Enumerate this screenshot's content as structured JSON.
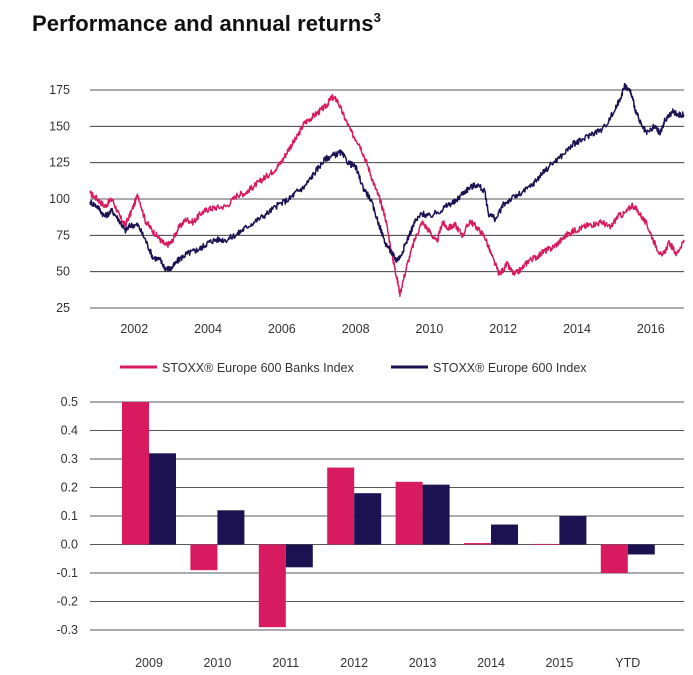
{
  "page": {
    "title": "Performance and annual returns",
    "title_footnote": "3"
  },
  "colors": {
    "banks": "#d81b60",
    "index": "#1c1252",
    "grid": "#222222"
  },
  "chart_data": [
    {
      "type": "line",
      "title": "",
      "xlabel": "",
      "ylabel": "",
      "xlim": [
        2000.8,
        2016.9
      ],
      "ylim": [
        25,
        175
      ],
      "x_ticks": [
        "2002",
        "2004",
        "2006",
        "2008",
        "2010",
        "2012",
        "2014",
        "2016"
      ],
      "y_ticks": [
        "175",
        "150",
        "125",
        "100",
        "75",
        "50",
        "25"
      ],
      "grid": "horizontal",
      "legend_placement": "bottom",
      "series": [
        {
          "name": "STOXX® Europe 600 Banks Index",
          "color": "#d81b60",
          "x": [
            2000.8,
            2001.0,
            2001.2,
            2001.4,
            2001.6,
            2001.75,
            2001.9,
            2002.1,
            2002.3,
            2002.5,
            2002.7,
            2002.85,
            2003.0,
            2003.2,
            2003.4,
            2003.6,
            2003.8,
            2004.0,
            2004.2,
            2004.5,
            2004.8,
            2005.0,
            2005.2,
            2005.4,
            2005.6,
            2005.8,
            2006.0,
            2006.2,
            2006.4,
            2006.6,
            2006.8,
            2007.0,
            2007.2,
            2007.35,
            2007.5,
            2007.7,
            2007.9,
            2008.1,
            2008.3,
            2008.5,
            2008.65,
            2008.8,
            2009.0,
            2009.1,
            2009.2,
            2009.4,
            2009.6,
            2009.8,
            2010.0,
            2010.2,
            2010.35,
            2010.5,
            2010.7,
            2010.9,
            2011.1,
            2011.3,
            2011.5,
            2011.7,
            2011.9,
            2012.1,
            2012.3,
            2012.5,
            2012.7,
            2012.9,
            2013.1,
            2013.3,
            2013.5,
            2013.7,
            2013.9,
            2014.1,
            2014.3,
            2014.5,
            2014.7,
            2014.9,
            2015.1,
            2015.3,
            2015.5,
            2015.7,
            2015.9,
            2016.1,
            2016.3,
            2016.5,
            2016.7,
            2016.9
          ],
          "y": [
            104,
            100,
            95,
            100,
            88,
            82,
            90,
            103,
            85,
            78,
            72,
            68,
            70,
            80,
            86,
            84,
            90,
            93,
            94,
            95,
            103,
            104,
            108,
            112,
            116,
            120,
            126,
            135,
            142,
            152,
            156,
            160,
            164,
            170,
            168,
            156,
            145,
            138,
            125,
            110,
            100,
            88,
            60,
            48,
            35,
            55,
            72,
            84,
            78,
            70,
            84,
            80,
            82,
            75,
            85,
            80,
            74,
            60,
            48,
            55,
            48,
            52,
            58,
            60,
            64,
            66,
            70,
            75,
            78,
            80,
            82,
            83,
            84,
            80,
            88,
            90,
            96,
            90,
            82,
            70,
            60,
            70,
            62,
            72
          ]
        },
        {
          "name": "STOXX® Europe 600 Index",
          "color": "#1c1252",
          "x": [
            2000.8,
            2001.0,
            2001.2,
            2001.4,
            2001.6,
            2001.75,
            2001.9,
            2002.1,
            2002.3,
            2002.5,
            2002.7,
            2002.85,
            2003.0,
            2003.2,
            2003.4,
            2003.6,
            2003.8,
            2004.0,
            2004.2,
            2004.5,
            2004.8,
            2005.0,
            2005.3,
            2005.6,
            2005.9,
            2006.2,
            2006.4,
            2006.6,
            2006.8,
            2007.0,
            2007.2,
            2007.4,
            2007.6,
            2007.8,
            2008.0,
            2008.2,
            2008.4,
            2008.6,
            2008.8,
            2009.0,
            2009.1,
            2009.2,
            2009.4,
            2009.6,
            2009.8,
            2010.0,
            2010.3,
            2010.5,
            2010.7,
            2010.9,
            2011.1,
            2011.3,
            2011.5,
            2011.6,
            2011.8,
            2012.0,
            2012.2,
            2012.5,
            2012.8,
            2013.0,
            2013.3,
            2013.6,
            2013.9,
            2014.1,
            2014.4,
            2014.7,
            2015.0,
            2015.15,
            2015.3,
            2015.45,
            2015.6,
            2015.75,
            2015.9,
            2016.1,
            2016.25,
            2016.4,
            2016.6,
            2016.75,
            2016.9
          ],
          "y": [
            98,
            95,
            88,
            92,
            85,
            78,
            82,
            82,
            72,
            60,
            58,
            52,
            52,
            58,
            62,
            64,
            66,
            70,
            72,
            72,
            76,
            80,
            85,
            90,
            96,
            100,
            105,
            108,
            115,
            122,
            128,
            130,
            132,
            125,
            122,
            108,
            100,
            85,
            70,
            62,
            58,
            60,
            72,
            84,
            90,
            88,
            92,
            96,
            98,
            104,
            108,
            110,
            105,
            90,
            86,
            96,
            100,
            104,
            110,
            116,
            124,
            130,
            138,
            140,
            145,
            148,
            160,
            168,
            178,
            174,
            160,
            150,
            145,
            150,
            145,
            155,
            160,
            158,
            158
          ]
        }
      ],
      "legend": [
        "STOXX® Europe 600 Banks Index",
        "STOXX® Europe 600 Index"
      ]
    },
    {
      "type": "bar",
      "title": "",
      "xlabel": "",
      "ylabel": "",
      "ylim": [
        -0.3,
        0.5
      ],
      "y_ticks": [
        "0.5",
        "0.4",
        "0.3",
        "0.2",
        "0.1",
        "0.0",
        "-0.1",
        "-0.2",
        "-0.3"
      ],
      "grid": "horizontal",
      "categories": [
        "2009",
        "2010",
        "2011",
        "2012",
        "2013",
        "2014",
        "2015",
        "YTD"
      ],
      "series": [
        {
          "name": "STOXX® Europe 600 Banks Index",
          "color": "#d81b60",
          "values": [
            0.5,
            -0.09,
            -0.29,
            0.27,
            0.22,
            0.005,
            0.002,
            -0.1
          ]
        },
        {
          "name": "STOXX® Europe 600 Index",
          "color": "#1c1252",
          "values": [
            0.32,
            0.12,
            -0.08,
            0.18,
            0.21,
            0.07,
            0.1,
            -0.035
          ]
        }
      ]
    }
  ]
}
